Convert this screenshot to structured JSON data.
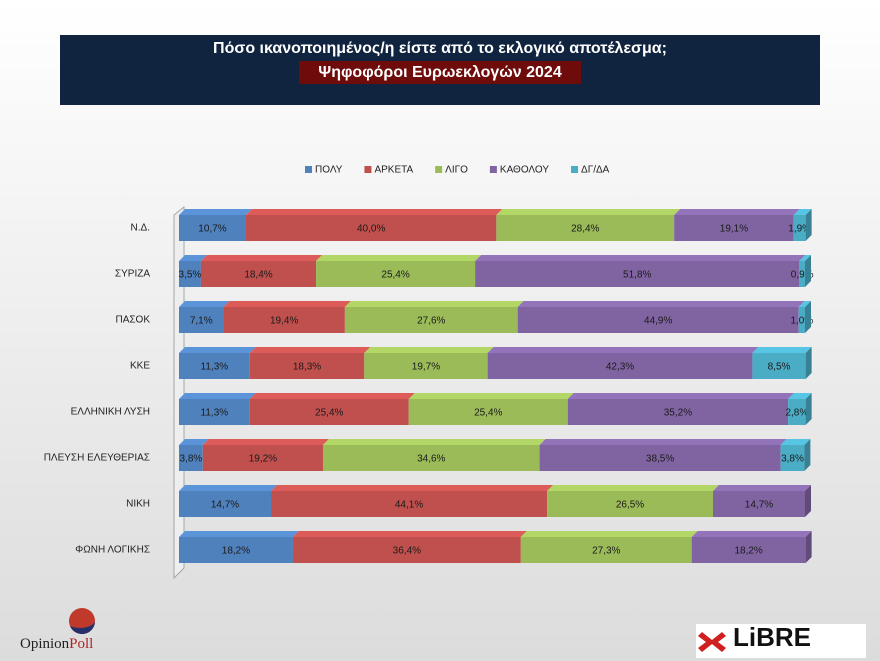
{
  "chart_data": {
    "type": "stacked-bar-horizontal",
    "title": "Πόσο ικανοποιημένος/η είστε από το εκλογικό αποτέλεσμα;",
    "subtitle": "Ψηφοφόροι Ευρωεκλογών 2024",
    "categories": [
      "Ν.Δ.",
      "ΣΥΡΙΖΑ",
      "ΠΑΣΟΚ",
      "ΚΚΕ",
      "ΕΛΛΗΝΙΚΗ ΛΥΣΗ",
      "ΠΛΕΥΣΗ ΕΛΕΥΘΕΡΙΑΣ",
      "ΝΙΚΗ",
      "ΦΩΝΗ ΛΟΓΙΚΗΣ"
    ],
    "xlim": [
      0,
      100
    ],
    "legend": "top",
    "series": [
      {
        "name": "ΠΟΛΥ",
        "color": "#4f81bd",
        "values": [
          10.7,
          3.5,
          7.1,
          11.3,
          11.3,
          3.8,
          14.7,
          18.2
        ],
        "value_labels": [
          "10,7%",
          "3,5%",
          "7,1%",
          "11,3%",
          "11,3%",
          "3,8%",
          "14,7%",
          "18,2%"
        ]
      },
      {
        "name": "ΑΡΚΕΤΑ",
        "color": "#c0504d",
        "values": [
          40.0,
          18.4,
          19.4,
          18.3,
          25.4,
          19.2,
          44.1,
          36.4
        ],
        "value_labels": [
          "40,0%",
          "18,4%",
          "19,4%",
          "18,3%",
          "25,4%",
          "19,2%",
          "44,1%",
          "36,4%"
        ]
      },
      {
        "name": "ΛΙΓΟ",
        "color": "#9bbb59",
        "values": [
          28.4,
          25.4,
          27.6,
          19.7,
          25.4,
          34.6,
          26.5,
          27.3
        ],
        "value_labels": [
          "28,4%",
          "25,4%",
          "27,6%",
          "19,7%",
          "25,4%",
          "34,6%",
          "26,5%",
          "27,3%"
        ]
      },
      {
        "name": "ΚΑΘΟΛΟΥ",
        "color": "#8064a2",
        "values": [
          19.1,
          51.8,
          44.9,
          42.3,
          35.2,
          38.5,
          14.7,
          18.2
        ],
        "value_labels": [
          "19,1%",
          "51,8%",
          "44,9%",
          "42,3%",
          "35,2%",
          "38,5%",
          "14,7%",
          "18,2%"
        ]
      },
      {
        "name": "ΔΓ/ΔΑ",
        "color": "#4bacc6",
        "values": [
          1.9,
          0.9,
          1.0,
          8.5,
          2.8,
          3.8,
          null,
          null
        ],
        "value_labels": [
          "1,9%",
          "0,9%",
          "1,0%",
          "8,5%",
          "2,8%",
          "3,8%",
          null,
          null
        ]
      }
    ]
  },
  "logos": {
    "opinion": "Opinion",
    "poll": "Poll",
    "libre": "LiBRE"
  }
}
